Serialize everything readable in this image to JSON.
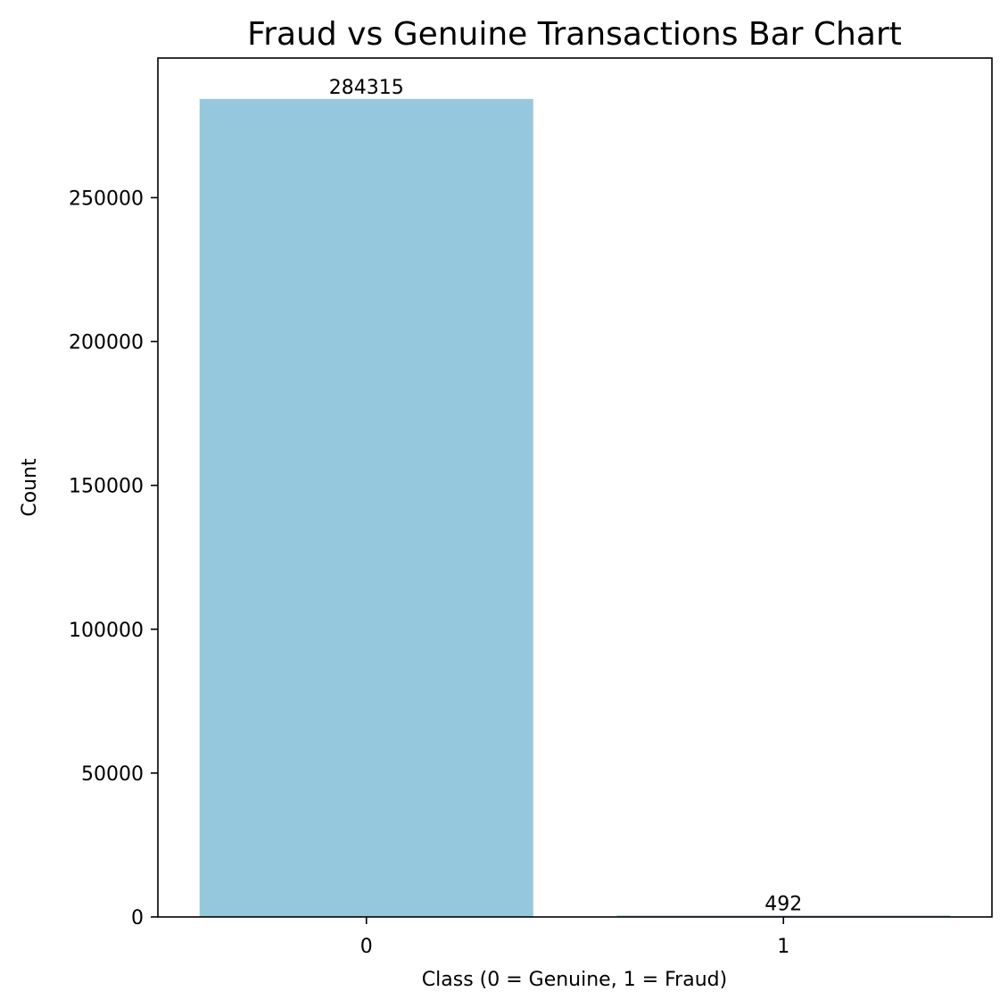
{
  "chart_data": {
    "type": "bar",
    "title": "Fraud vs Genuine Transactions Bar Chart",
    "xlabel": "Class (0 = Genuine, 1 = Fraud)",
    "ylabel": "Count",
    "categories": [
      "0",
      "1"
    ],
    "values": [
      284315,
      492
    ],
    "data_labels": [
      "284315",
      "492"
    ],
    "ylim": [
      0,
      298530
    ],
    "yticks": [
      0,
      50000,
      100000,
      150000,
      200000,
      250000
    ],
    "ytick_labels": [
      "0",
      "50000",
      "100000",
      "150000",
      "200000",
      "250000"
    ],
    "grid": false,
    "legend": "none",
    "bar_color": "#96c8dd"
  }
}
